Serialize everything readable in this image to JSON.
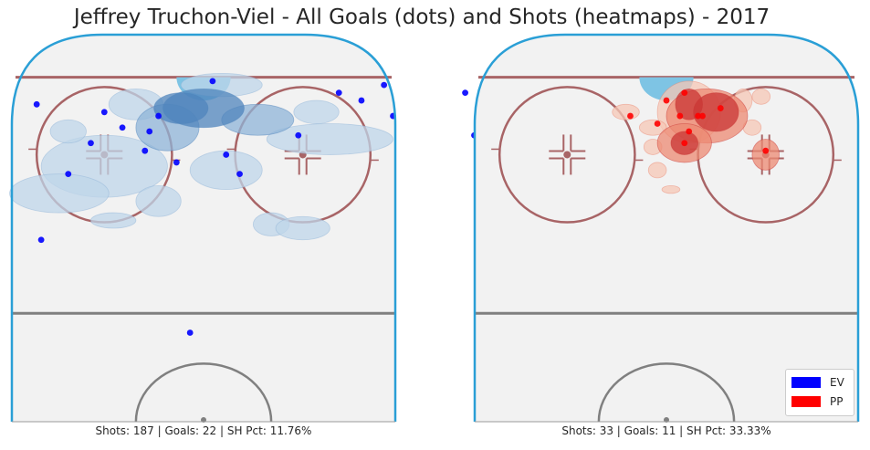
{
  "title": "Jeffrey Truchon-Viel - All Goals (dots) and Shots (heatmaps) - 2017",
  "colors": {
    "ev": "#0000ff",
    "pp": "#ff0000",
    "ice": "#f2f2f2",
    "boards": "#2a9fd6",
    "red_line": "#a86466",
    "center_line": "#808080",
    "crease": "#7ec4e4"
  },
  "chart_data": [
    {
      "type": "scatter",
      "panel": "left",
      "strength": "EV",
      "caption": "Shots: 187 | Goals: 22 | SH Pct: 11.76%",
      "stats": {
        "shots": 187,
        "goals": 22,
        "sh_pct": 11.76
      },
      "heatmap_palette": "blues",
      "goal_color": "#0000ff",
      "goals": [
        {
          "x": 35,
          "y": 83
        },
        {
          "x": 40,
          "y": 87
        },
        {
          "x": 42,
          "y": 79
        },
        {
          "x": 60,
          "y": 74
        },
        {
          "x": 65,
          "y": 87
        },
        {
          "x": 21,
          "y": 74
        },
        {
          "x": 30,
          "y": 85
        },
        {
          "x": 58,
          "y": 85
        },
        {
          "x": 8,
          "y": 64
        },
        {
          "x": 5,
          "y": 69
        },
        {
          "x": 2,
          "y": 88
        },
        {
          "x": -30,
          "y": 64
        },
        {
          "x": -25,
          "y": 72
        },
        {
          "x": -12,
          "y": 75
        },
        {
          "x": -13,
          "y": 70
        },
        {
          "x": -6,
          "y": 67
        },
        {
          "x": -37,
          "y": 82
        },
        {
          "x": -22,
          "y": 80
        },
        {
          "x": -18,
          "y": 76
        },
        {
          "x": -10,
          "y": 79
        },
        {
          "x": -36,
          "y": 47
        },
        {
          "x": -3,
          "y": 23
        }
      ],
      "shot_heat": [
        {
          "x": 0,
          "y": 81,
          "w": 9,
          "h": 5,
          "level": 3
        },
        {
          "x": -5,
          "y": 81,
          "w": 6,
          "h": 4,
          "level": 3
        },
        {
          "x": 12,
          "y": 78,
          "w": 8,
          "h": 4,
          "level": 2
        },
        {
          "x": -8,
          "y": 76,
          "w": 7,
          "h": 6,
          "level": 2
        },
        {
          "x": 4,
          "y": 87,
          "w": 9,
          "h": 3,
          "level": 1
        },
        {
          "x": -15,
          "y": 82,
          "w": 6,
          "h": 4,
          "level": 1
        },
        {
          "x": 28,
          "y": 73,
          "w": 14,
          "h": 4,
          "level": 1
        },
        {
          "x": 25,
          "y": 80,
          "w": 5,
          "h": 3,
          "level": 1
        },
        {
          "x": -22,
          "y": 66,
          "w": 14,
          "h": 8,
          "level": 1
        },
        {
          "x": -32,
          "y": 59,
          "w": 11,
          "h": 5,
          "level": 1
        },
        {
          "x": -10,
          "y": 57,
          "w": 5,
          "h": 4,
          "level": 1
        },
        {
          "x": 15,
          "y": 51,
          "w": 4,
          "h": 3,
          "level": 1
        },
        {
          "x": 22,
          "y": 50,
          "w": 6,
          "h": 3,
          "level": 1
        },
        {
          "x": -20,
          "y": 52,
          "w": 5,
          "h": 2,
          "level": 1
        },
        {
          "x": 5,
          "y": 65,
          "w": 8,
          "h": 5,
          "level": 1
        },
        {
          "x": -30,
          "y": 75,
          "w": 4,
          "h": 3,
          "level": 1
        }
      ]
    },
    {
      "type": "scatter",
      "panel": "right",
      "strength": "PP",
      "caption": "Shots: 33 | Goals: 11 | SH Pct: 33.33%",
      "stats": {
        "shots": 33,
        "goals": 11,
        "sh_pct": 33.33
      },
      "heatmap_palette": "reds",
      "goal_color": "#ff0000",
      "goals": [
        {
          "x": 4,
          "y": 85
        },
        {
          "x": 8,
          "y": 79
        },
        {
          "x": 12,
          "y": 81
        },
        {
          "x": 5,
          "y": 75
        },
        {
          "x": 0,
          "y": 83
        },
        {
          "x": -2,
          "y": 77
        },
        {
          "x": -8,
          "y": 79
        },
        {
          "x": 4,
          "y": 72
        },
        {
          "x": 7,
          "y": 79
        },
        {
          "x": 22,
          "y": 70
        },
        {
          "x": 3,
          "y": 79
        }
      ],
      "shot_heat": [
        {
          "x": 11,
          "y": 80,
          "w": 5,
          "h": 5,
          "level": 3
        },
        {
          "x": 5,
          "y": 82,
          "w": 3,
          "h": 4,
          "level": 3
        },
        {
          "x": 4,
          "y": 72,
          "w": 3,
          "h": 3,
          "level": 3
        },
        {
          "x": 9,
          "y": 79,
          "w": 9,
          "h": 7,
          "level": 2
        },
        {
          "x": 5,
          "y": 80,
          "w": 7,
          "h": 8,
          "level": 1
        },
        {
          "x": 4,
          "y": 72,
          "w": 6,
          "h": 5,
          "level": 2
        },
        {
          "x": 22,
          "y": 69,
          "w": 3,
          "h": 4,
          "level": 2
        },
        {
          "x": -3,
          "y": 76,
          "w": 3,
          "h": 2,
          "level": 1
        },
        {
          "x": -9,
          "y": 80,
          "w": 3,
          "h": 2,
          "level": 1
        },
        {
          "x": -3,
          "y": 71,
          "w": 2,
          "h": 2,
          "level": 1
        },
        {
          "x": -2,
          "y": 65,
          "w": 2,
          "h": 2,
          "level": 1
        },
        {
          "x": 17,
          "y": 83,
          "w": 2,
          "h": 3,
          "level": 1
        },
        {
          "x": 21,
          "y": 84,
          "w": 2,
          "h": 2,
          "level": 1
        },
        {
          "x": 19,
          "y": 76,
          "w": 2,
          "h": 2,
          "level": 1
        },
        {
          "x": 1,
          "y": 60,
          "w": 2,
          "h": 1,
          "level": 1
        }
      ]
    }
  ],
  "legend": [
    {
      "label": "EV",
      "color": "#0000ff"
    },
    {
      "label": "PP",
      "color": "#ff0000"
    }
  ]
}
